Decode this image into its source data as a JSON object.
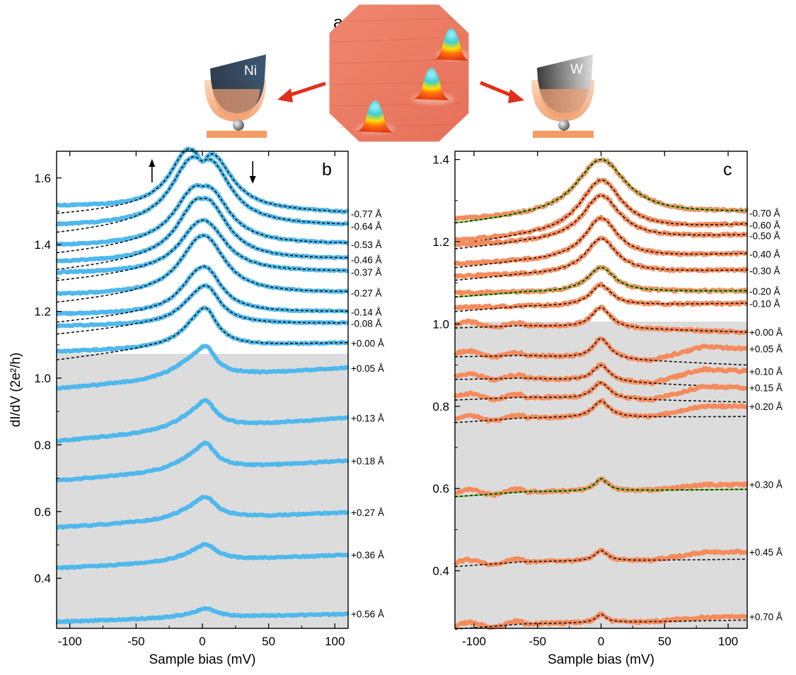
{
  "figure": {
    "panel_a_letter": "a",
    "tip_left_label": "Ni",
    "tip_right_label": "W"
  },
  "chart_data": [
    {
      "panel": "b",
      "type": "line",
      "xlabel": "Sample bias (mV)",
      "ylabel": "dI/dV (2e²/h)",
      "xlim": [
        -110,
        110
      ],
      "ylim": [
        0.25,
        1.68
      ],
      "xticks": [
        -100,
        -50,
        0,
        50,
        100
      ],
      "yticks": [
        0.4,
        0.6,
        0.8,
        1.0,
        1.2,
        1.4,
        1.6
      ],
      "series_color": "#4fb8ec",
      "fit_style": "black dashed",
      "shaded_region_below": 1.073,
      "annotations": [
        "↑ at −38 mV",
        "↓ at +38 mV"
      ],
      "series": [
        {
          "label": "-0.77 Å",
          "baseline": 1.513,
          "end": 1.493,
          "peaks": [
            [
              -12,
              0.135,
              16
            ],
            [
              9,
              0.125,
              17
            ]
          ],
          "dip": [
            0,
            0.04,
            4
          ],
          "fit": true
        },
        {
          "label": "-0.64 Å",
          "baseline": 1.455,
          "end": 1.455,
          "peaks": [
            [
              -10,
              0.14,
              18
            ],
            [
              8,
              0.13,
              18
            ]
          ],
          "dip": [
            0,
            0.02,
            4
          ],
          "fit": true
        },
        {
          "label": "-0.53 Å",
          "baseline": 1.395,
          "end": 1.4,
          "peaks": [
            [
              -8,
              0.11,
              18
            ],
            [
              7,
              0.11,
              18
            ]
          ],
          "dip": [
            0,
            0.01,
            4
          ],
          "fit": true
        },
        {
          "label": "-0.46 Å",
          "baseline": 1.345,
          "end": 1.355,
          "peaks": [
            [
              -6,
              0.11,
              18
            ],
            [
              6,
              0.11,
              18
            ]
          ],
          "dip": [
            0,
            0.01,
            4
          ],
          "fit": true
        },
        {
          "label": "-0.37 Å",
          "baseline": 1.313,
          "end": 1.318,
          "peaks": [
            [
              -5,
              0.08,
              18
            ],
            [
              5,
              0.09,
              18
            ]
          ],
          "dip": [
            0,
            0.0,
            4
          ],
          "fit": true
        },
        {
          "label": "-0.27 Å",
          "baseline": 1.248,
          "end": 1.255,
          "peaks": [
            [
              -5,
              0.09,
              18
            ],
            [
              5,
              0.1,
              17
            ]
          ],
          "dip": [
            0,
            0.0,
            4
          ],
          "fit": true
        },
        {
          "label": "-0.14 Å",
          "baseline": 1.19,
          "end": 1.198,
          "peaks": [
            [
              -6,
              0.065,
              16
            ],
            [
              4,
              0.09,
              14
            ]
          ],
          "dip": [
            0,
            0.0,
            4
          ],
          "fit": true
        },
        {
          "label": "-0.08 Å",
          "baseline": 1.155,
          "end": 1.164,
          "peaks": [
            [
              -6,
              0.05,
              16
            ],
            [
              4,
              0.08,
              12
            ]
          ],
          "dip": [
            0,
            0.0,
            4
          ],
          "fit": true
        },
        {
          "label": "+0.00 Å",
          "baseline": 1.078,
          "end": 1.105,
          "peaks": [
            [
              -6,
              0.05,
              16
            ],
            [
              3,
              0.08,
              10
            ]
          ],
          "dip": [
            0,
            0.0,
            4
          ],
          "fit": true
        },
        {
          "label": "+0.05 Å",
          "baseline": 0.968,
          "end": 1.03,
          "peaks": [
            [
              -8,
              0.05,
              18
            ],
            [
              3,
              0.06,
              8
            ]
          ],
          "dip": [
            0,
            0.0,
            4
          ],
          "fit": false
        },
        {
          "label": "+0.13 Å",
          "baseline": 0.81,
          "end": 0.88,
          "peaks": [
            [
              -6,
              0.045,
              18
            ],
            [
              3,
              0.05,
              8
            ]
          ],
          "dip": [
            0,
            0.0,
            4
          ],
          "fit": false
        },
        {
          "label": "+0.18 Å",
          "baseline": 0.692,
          "end": 0.752,
          "peaks": [
            [
              -6,
              0.04,
              18
            ],
            [
              3,
              0.05,
              8
            ]
          ],
          "dip": [
            0,
            0.0,
            4
          ],
          "fit": false
        },
        {
          "label": "+0.27 Å",
          "baseline": 0.552,
          "end": 0.597,
          "peaks": [
            [
              -6,
              0.03,
              18
            ],
            [
              3,
              0.045,
              9
            ]
          ],
          "dip": [
            0,
            0.0,
            4
          ],
          "fit": false
        },
        {
          "label": "+0.36 Å",
          "baseline": 0.43,
          "end": 0.47,
          "peaks": [
            [
              -6,
              0.02,
              18
            ],
            [
              3,
              0.035,
              9
            ]
          ],
          "dip": [
            0,
            0.0,
            4
          ],
          "fit": false
        },
        {
          "label": "+0.56 Å",
          "baseline": 0.27,
          "end": 0.293,
          "peaks": [
            [
              -6,
              0.01,
              18
            ],
            [
              3,
              0.02,
              8
            ]
          ],
          "dip": [
            0,
            0.0,
            4
          ],
          "fit": false
        }
      ]
    },
    {
      "panel": "c",
      "type": "line",
      "xlabel": "Sample bias (mV)",
      "ylabel": "",
      "xlim": [
        -115,
        115
      ],
      "ylim": [
        0.26,
        1.42
      ],
      "xticks": [
        -100,
        -50,
        0,
        50,
        100
      ],
      "yticks": [
        0.4,
        0.6,
        0.8,
        1.0,
        1.2,
        1.4
      ],
      "series_color": "#f58b5c",
      "fit_style": "black dashed",
      "highlight_color": "#66dd33",
      "shaded_region_below": 1.006,
      "series": [
        {
          "label": "-0.70 Å",
          "base_left": 1.25,
          "base_right": 1.27,
          "amp": 0.14,
          "width": 24,
          "highlight": true,
          "rise": 0.0
        },
        {
          "label": "-0.60 Å",
          "base_left": 1.2,
          "base_right": 1.24,
          "amp": 0.13,
          "width": 20,
          "highlight": false,
          "rise": 0.0
        },
        {
          "label": "-0.50 Å",
          "base_left": 1.19,
          "base_right": 1.215,
          "amp": 0.11,
          "width": 18,
          "highlight": false,
          "rise": 0.0
        },
        {
          "label": "-0.40 Å",
          "base_left": 1.145,
          "base_right": 1.17,
          "amp": 0.1,
          "width": 16,
          "highlight": false,
          "rise": 0.0
        },
        {
          "label": "-0.30 Å",
          "base_left": 1.115,
          "base_right": 1.13,
          "amp": 0.085,
          "width": 15,
          "highlight": false,
          "rise": 0.0
        },
        {
          "label": "-0.20 Å",
          "base_left": 1.075,
          "base_right": 1.08,
          "amp": 0.06,
          "width": 13,
          "highlight": true,
          "rise": 0.0
        },
        {
          "label": "-0.10 Å",
          "base_left": 1.04,
          "base_right": 1.05,
          "amp": 0.05,
          "width": 10,
          "highlight": false,
          "rise": 0.0
        },
        {
          "label": "+0.00 Å",
          "base_left": 1.0,
          "base_right": 0.98,
          "amp": 0.05,
          "width": 9,
          "highlight": false,
          "rise": 0.0
        },
        {
          "label": "+0.05 Å",
          "base_left": 0.93,
          "base_right": 0.9,
          "amp": 0.05,
          "width": 8,
          "highlight": false,
          "rise": 0.04
        },
        {
          "label": "+0.10 Å",
          "base_left": 0.875,
          "base_right": 0.845,
          "amp": 0.04,
          "width": 8,
          "highlight": false,
          "rise": 0.04
        },
        {
          "label": "+0.15 Å",
          "base_left": 0.825,
          "base_right": 0.81,
          "amp": 0.04,
          "width": 8,
          "highlight": false,
          "rise": 0.035
        },
        {
          "label": "+0.20 Å",
          "base_left": 0.77,
          "base_right": 0.775,
          "amp": 0.04,
          "width": 8,
          "highlight": false,
          "rise": 0.025
        },
        {
          "label": "+0.30 Å",
          "base_left": 0.59,
          "base_right": 0.598,
          "amp": 0.03,
          "width": 6,
          "highlight": true,
          "rise": 0.012
        },
        {
          "label": "+0.45 Å",
          "base_left": 0.42,
          "base_right": 0.428,
          "amp": 0.025,
          "width": 6,
          "highlight": false,
          "rise": 0.018
        },
        {
          "label": "+0.70 Å",
          "base_left": 0.268,
          "base_right": 0.28,
          "amp": 0.02,
          "width": 5,
          "highlight": false,
          "rise": 0.008
        }
      ]
    }
  ]
}
